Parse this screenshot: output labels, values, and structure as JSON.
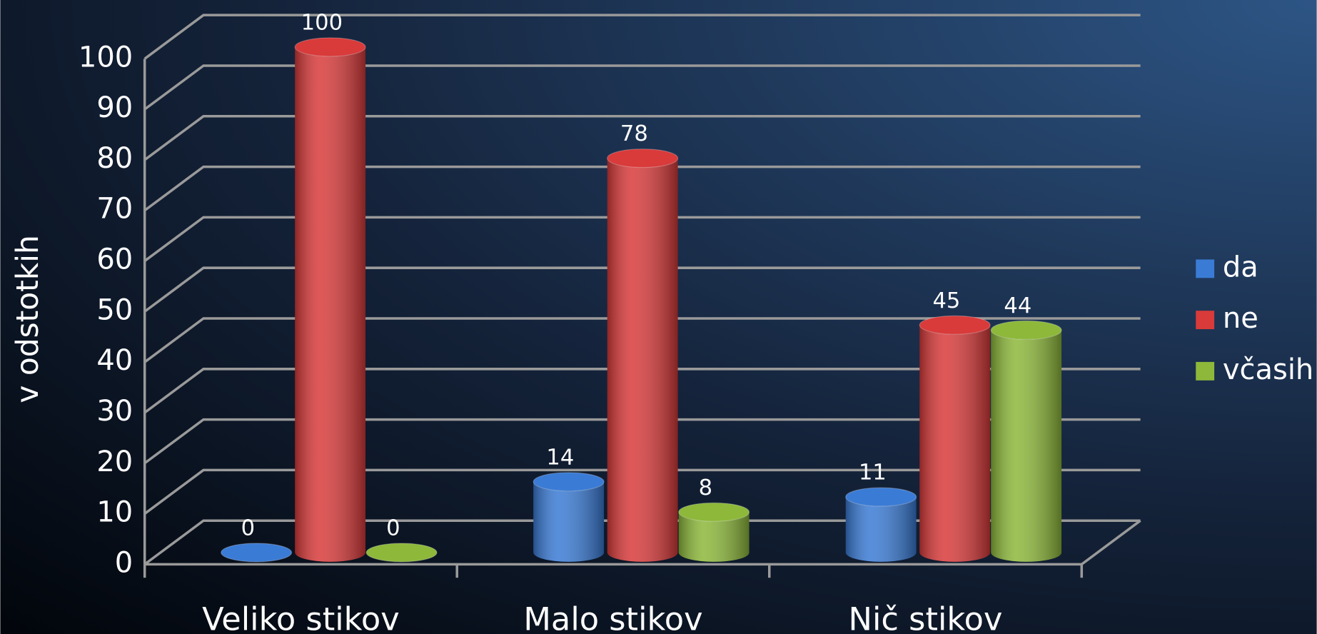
{
  "chart_data": {
    "type": "bar3d",
    "categories": [
      "Veliko stikov",
      "Malo stikov",
      "Nič stikov"
    ],
    "series": [
      {
        "name": "da",
        "color": "#3a7bd5",
        "values": [
          0,
          14,
          11
        ]
      },
      {
        "name": "ne",
        "color": "#d93a3a",
        "values": [
          100,
          78,
          45
        ]
      },
      {
        "name": "včasih",
        "color": "#8db83a",
        "values": [
          0,
          8,
          44
        ]
      }
    ],
    "y_label": "v odstotkih",
    "ylim": [
      0,
      100
    ],
    "yticks": [
      0,
      10,
      20,
      30,
      40,
      50,
      60,
      70,
      80,
      90,
      100
    ],
    "grid": true,
    "legend": "right"
  }
}
